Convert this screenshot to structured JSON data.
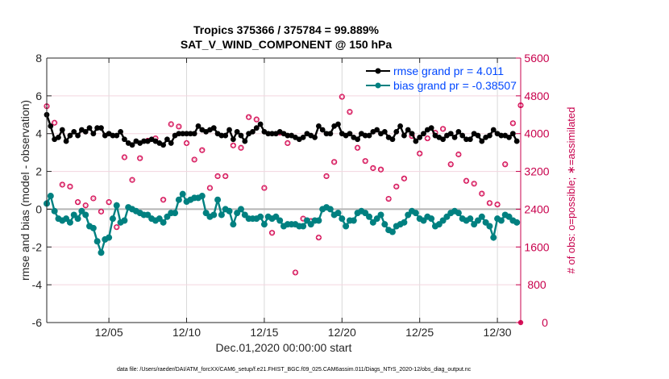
{
  "chart_data": {
    "type": "line",
    "title": "Tropics 375366 / 375784 = 99.889%",
    "subtitle": "SAT_V_WIND_COMPONENT @ 150 hPa",
    "xlabel": "Dec.01,2020 00:00:00 start",
    "ylabel": "rmse and bias (model - observation)",
    "y2label": "# of obs: o=possible; ∗=assimilated",
    "footnote": "data file: /Users/raeder/DAI/ATM_forcXX/CAM6_setup/f.e21.FHIST_BGC.f09_025.CAM6assim.011/Diags_NTrS_2020-12/obs_diag_output.nc",
    "x_unit": "days since Dec.01,2020 00:00:00",
    "xlim": [
      0,
      30.5
    ],
    "ylim": [
      -6,
      8
    ],
    "y2lim": [
      0,
      5600
    ],
    "x_ticks": [
      4,
      9,
      14,
      19,
      24,
      29
    ],
    "x_tick_labels": [
      "12/05",
      "12/10",
      "12/15",
      "12/20",
      "12/25",
      "12/30"
    ],
    "y_ticks": [
      -6,
      -4,
      -2,
      0,
      2,
      4,
      6,
      8
    ],
    "y_tick_labels": [
      "-6",
      "-4",
      "-2",
      "0",
      "2",
      "4",
      "6",
      "8"
    ],
    "y2_ticks": [
      0,
      800,
      1600,
      2400,
      3200,
      4000,
      4800,
      5600
    ],
    "y2_tick_labels": [
      "0",
      "800",
      "1600",
      "2400",
      "3200",
      "4000",
      "4800",
      "5600"
    ],
    "grid": true,
    "legend_position": "top-right",
    "legend": [
      {
        "label": "rmse grand pr = 4.011",
        "color": "#000000"
      },
      {
        "label": "bias grand pr = -0.38507",
        "color": "#008080"
      }
    ],
    "x_step_days": 0.25,
    "series": [
      {
        "name": "rmse",
        "color": "#000000",
        "values": [
          5.0,
          4.4,
          3.7,
          3.8,
          4.2,
          3.6,
          3.9,
          4.1,
          3.9,
          4.2,
          4.1,
          4.3,
          4.0,
          4.3,
          4.3,
          3.9,
          4.0,
          3.9,
          3.9,
          4.1,
          3.7,
          3.5,
          3.4,
          3.6,
          3.5,
          3.6,
          3.6,
          3.7,
          3.6,
          3.5,
          3.4,
          3.7,
          3.5,
          3.9,
          4.0,
          4.0,
          4.0,
          4.0,
          4.0,
          4.4,
          4.2,
          4.1,
          4.2,
          4.3,
          4.0,
          3.9,
          3.9,
          4.2,
          3.7,
          4.1,
          3.9,
          3.6,
          4.0,
          4.1,
          4.3,
          4.5,
          4.1,
          4.0,
          4.0,
          4.0,
          4.1,
          4.0,
          3.9,
          3.9,
          3.8,
          3.7,
          3.8,
          4.0,
          3.9,
          3.8,
          4.4,
          4.2,
          4.0,
          4.0,
          4.4,
          4.5,
          4.0,
          3.9,
          4.0,
          3.8,
          3.7,
          4.0,
          3.9,
          3.9,
          4.1,
          4.2,
          4.0,
          4.1,
          3.8,
          3.7,
          4.1,
          4.4,
          3.9,
          4.2,
          4.0,
          3.6,
          3.8,
          4.0,
          4.2,
          4.3,
          3.9,
          3.8,
          3.7,
          3.9,
          4.0,
          3.8,
          4.1,
          3.9,
          3.7,
          3.7,
          4.0,
          3.9,
          3.6,
          3.8,
          3.9,
          4.2,
          4.0,
          3.9,
          3.9,
          3.8,
          4.0,
          3.6
        ]
      },
      {
        "name": "bias",
        "color": "#008080",
        "values": [
          0.3,
          0.7,
          -0.1,
          -0.5,
          -0.6,
          -0.5,
          -0.7,
          -0.3,
          -0.5,
          -0.1,
          -0.3,
          -0.9,
          -1.0,
          -1.7,
          -2.3,
          -1.6,
          -1.5,
          -0.5,
          0.2,
          -0.7,
          -0.6,
          0.1,
          0.0,
          -0.1,
          -0.2,
          -0.3,
          -0.3,
          -0.5,
          -0.6,
          -0.5,
          -0.7,
          -0.4,
          -0.2,
          -0.2,
          0.5,
          0.8,
          0.4,
          0.5,
          0.6,
          0.6,
          0.7,
          -0.2,
          -0.4,
          -0.3,
          0.5,
          -0.3,
          0.0,
          -0.1,
          -0.8,
          -0.2,
          0.0,
          -0.3,
          -0.5,
          -0.5,
          -0.5,
          -0.4,
          -0.8,
          -0.4,
          -0.5,
          -0.4,
          -0.6,
          -0.9,
          -0.8,
          -0.8,
          -0.8,
          -0.9,
          -0.9,
          -0.6,
          -0.8,
          -0.6,
          -0.6,
          0.0,
          0.1,
          0.0,
          -0.3,
          -0.2,
          -0.5,
          -0.9,
          -0.6,
          -0.6,
          -0.2,
          -0.1,
          -0.2,
          -0.4,
          -0.7,
          -0.5,
          -0.3,
          -0.8,
          -1.1,
          -1.2,
          -0.9,
          -0.8,
          -0.7,
          -0.3,
          -0.1,
          -0.2,
          -0.5,
          -0.6,
          -0.4,
          -0.5,
          -0.9,
          -0.8,
          -0.6,
          -0.4,
          -0.2,
          -0.1,
          -0.2,
          -0.5,
          -0.6,
          -0.5,
          -0.8,
          -0.6,
          -0.4,
          -0.7,
          -0.9,
          -1.5,
          -0.5,
          -0.6,
          -0.3,
          -0.4,
          -0.6,
          -0.7
        ]
      }
    ],
    "obs_step_days": 0.5,
    "obs_assimilated": [
      4580,
      4230,
      2920,
      2880,
      2550,
      2480,
      2630,
      2350,
      2550,
      2020,
      3500,
      3020,
      3480,
      3850,
      3900,
      2600,
      4200,
      4150,
      3800,
      3450,
      3650,
      2850,
      3100,
      3100,
      3750,
      3700,
      4350,
      4300,
      2850,
      1900,
      4020,
      3800,
      1060,
      2200,
      2150,
      1800,
      3100,
      3400,
      4780,
      4460,
      3700,
      3420,
      3270,
      3240,
      2620,
      2880,
      3050,
      3950,
      3580,
      3900,
      4020,
      4100,
      3350,
      3560,
      3000,
      2940,
      2730,
      2530,
      2500,
      3350,
      4220,
      4600
    ]
  },
  "legend_labels": {
    "rmse": "rmse grand pr = 4.011",
    "bias": "bias grand pr = -0.38507"
  }
}
